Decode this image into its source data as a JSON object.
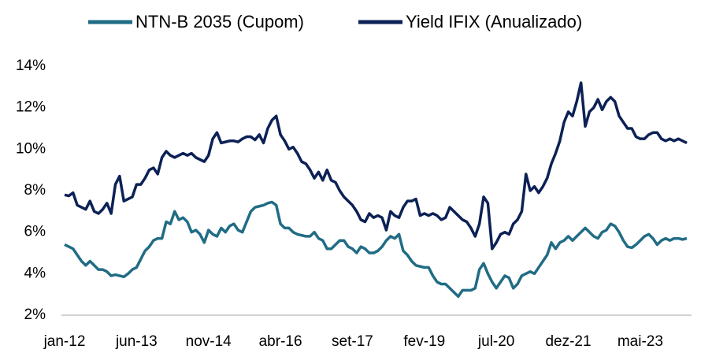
{
  "chart_data": {
    "type": "line",
    "categories": [
      "jan-12",
      null,
      null,
      null,
      null,
      null,
      null,
      null,
      null,
      null,
      null,
      null,
      null,
      null,
      null,
      null,
      null,
      "jun-13",
      null,
      null,
      null,
      null,
      null,
      null,
      null,
      null,
      null,
      null,
      null,
      null,
      null,
      null,
      null,
      null,
      "nov-14",
      null,
      null,
      null,
      null,
      null,
      null,
      null,
      null,
      null,
      null,
      null,
      null,
      null,
      null,
      null,
      null,
      "abr-16",
      null,
      null,
      null,
      null,
      null,
      null,
      null,
      null,
      null,
      null,
      null,
      null,
      null,
      null,
      null,
      null,
      "set-17",
      null,
      null,
      null,
      null,
      null,
      null,
      null,
      null,
      null,
      null,
      null,
      null,
      null,
      null,
      null,
      null,
      "fev-19",
      null,
      null,
      null,
      null,
      null,
      null,
      null,
      null,
      null,
      null,
      null,
      null,
      null,
      null,
      null,
      null,
      "jul-20",
      null,
      null,
      null,
      null,
      null,
      null,
      null,
      null,
      null,
      null,
      null,
      null,
      null,
      null,
      null,
      null,
      "dez-21",
      null,
      null,
      null,
      null,
      null,
      null,
      null,
      null,
      null,
      null,
      null,
      null,
      null,
      null,
      null,
      null,
      "mai-23",
      null,
      null,
      null,
      null,
      null,
      null,
      null,
      null,
      null,
      null,
      null
    ],
    "series": [
      {
        "name": "NTN-B 2035 (Cupom)",
        "color": "#216c85",
        "values": [
          5.4,
          5.3,
          5.2,
          4.9,
          4.6,
          4.4,
          4.6,
          4.4,
          4.2,
          4.2,
          4.1,
          3.9,
          3.95,
          3.9,
          3.85,
          4.0,
          4.2,
          4.3,
          4.7,
          5.1,
          5.3,
          5.6,
          5.7,
          5.7,
          6.5,
          6.4,
          7.0,
          6.6,
          6.7,
          6.5,
          6.0,
          6.1,
          5.9,
          5.5,
          6.1,
          5.9,
          5.8,
          6.2,
          6.0,
          6.3,
          6.4,
          6.1,
          6.0,
          6.5,
          7.0,
          7.2,
          7.25,
          7.3,
          7.4,
          7.45,
          7.3,
          6.4,
          6.2,
          6.2,
          6.0,
          5.9,
          5.85,
          5.8,
          5.8,
          6.0,
          5.7,
          5.6,
          5.2,
          5.2,
          5.4,
          5.6,
          5.6,
          5.3,
          5.2,
          5.0,
          5.3,
          5.2,
          5.0,
          5.0,
          5.1,
          5.3,
          5.6,
          5.8,
          5.7,
          5.9,
          5.1,
          4.9,
          4.6,
          4.4,
          4.35,
          4.3,
          4.3,
          3.9,
          3.6,
          3.5,
          3.5,
          3.3,
          3.1,
          2.9,
          3.2,
          3.2,
          3.2,
          3.3,
          4.2,
          4.5,
          4.0,
          3.6,
          3.3,
          3.6,
          3.9,
          3.8,
          3.3,
          3.5,
          3.9,
          4.0,
          4.1,
          4.0,
          4.3,
          4.6,
          4.9,
          5.5,
          5.2,
          5.5,
          5.6,
          5.8,
          5.6,
          5.8,
          6.0,
          6.2,
          6.0,
          5.8,
          5.7,
          6.0,
          6.1,
          6.4,
          6.3,
          6.0,
          5.6,
          5.3,
          5.25,
          5.4,
          5.6,
          5.8,
          5.9,
          5.7,
          5.4,
          5.6,
          5.7,
          5.6,
          5.7,
          5.7,
          5.65,
          5.7
        ]
      },
      {
        "name": "Yield IFIX (Anualizado)",
        "color": "#0c2155",
        "values": [
          7.8,
          7.75,
          7.9,
          7.3,
          7.2,
          7.1,
          7.5,
          7.0,
          6.9,
          7.1,
          7.4,
          6.9,
          8.3,
          8.7,
          7.5,
          7.6,
          7.7,
          8.3,
          8.3,
          8.6,
          9.0,
          9.1,
          8.8,
          9.6,
          9.9,
          9.7,
          9.6,
          9.7,
          9.8,
          9.7,
          9.8,
          9.6,
          9.5,
          9.4,
          9.7,
          10.5,
          10.8,
          10.3,
          10.35,
          10.4,
          10.4,
          10.35,
          10.5,
          10.6,
          10.6,
          10.45,
          10.7,
          10.3,
          11.0,
          11.4,
          11.6,
          10.7,
          10.4,
          10.0,
          10.1,
          9.8,
          9.4,
          9.3,
          9.0,
          8.6,
          8.9,
          8.5,
          9.0,
          8.5,
          8.4,
          8.0,
          7.7,
          7.5,
          7.3,
          7.0,
          6.6,
          6.5,
          6.9,
          6.7,
          6.8,
          6.7,
          6.1,
          7.0,
          6.8,
          6.7,
          7.2,
          7.5,
          7.5,
          7.6,
          6.8,
          6.9,
          6.8,
          6.9,
          6.8,
          6.6,
          6.7,
          7.2,
          7.0,
          6.8,
          6.6,
          6.5,
          6.2,
          5.8,
          6.4,
          7.7,
          7.4,
          5.2,
          5.5,
          5.9,
          6.0,
          5.9,
          6.4,
          6.6,
          7.0,
          8.8,
          8.0,
          8.2,
          7.9,
          8.2,
          8.6,
          9.3,
          9.8,
          10.4,
          11.3,
          11.8,
          11.6,
          12.3,
          13.2,
          11.1,
          11.8,
          12.0,
          12.4,
          11.9,
          12.3,
          12.5,
          12.3,
          11.6,
          11.3,
          11.0,
          11.0,
          10.6,
          10.5,
          10.5,
          10.7,
          10.8,
          10.8,
          10.5,
          10.4,
          10.5,
          10.4,
          10.5,
          10.4,
          10.3
        ]
      }
    ],
    "ylim": [
      2,
      14
    ],
    "yticks": [
      {
        "value": 2,
        "label": "2%"
      },
      {
        "value": 4,
        "label": "4%"
      },
      {
        "value": 6,
        "label": "6%"
      },
      {
        "value": 8,
        "label": "8%"
      },
      {
        "value": 10,
        "label": "10%"
      },
      {
        "value": 12,
        "label": "12%"
      },
      {
        "value": 14,
        "label": "14%"
      }
    ],
    "grid": false,
    "legend": "top"
  }
}
